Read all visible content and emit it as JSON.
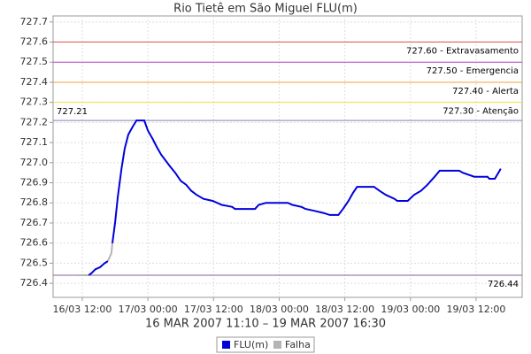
{
  "chart_data": {
    "type": "line",
    "title": "Rio Tietê em São Miguel FLU(m)",
    "subtitle": "16 MAR 2007 11:10 – 19 MAR 2007 16:30",
    "x": [
      "2007-03-16T11:10",
      "2007-03-16T13:10",
      "2007-03-16T13:40",
      "2007-03-16T14:25",
      "2007-03-16T15:15",
      "2007-03-16T16:05",
      "2007-03-16T16:40",
      "2007-03-16T17:20",
      "2007-03-16T17:30",
      "2007-03-16T18:00",
      "2007-03-16T18:30",
      "2007-03-16T19:10",
      "2007-03-16T19:45",
      "2007-03-16T20:25",
      "2007-03-16T21:15",
      "2007-03-16T21:55",
      "2007-03-16T23:20",
      "2007-03-17T00:00",
      "2007-03-17T00:50",
      "2007-03-17T01:35",
      "2007-03-17T02:25",
      "2007-03-17T03:15",
      "2007-03-17T04:05",
      "2007-03-17T05:00",
      "2007-03-17T06:00",
      "2007-03-17T07:00",
      "2007-03-17T07:55",
      "2007-03-17T08:55",
      "2007-03-17T10:10",
      "2007-03-17T11:50",
      "2007-03-17T13:30",
      "2007-03-17T15:25",
      "2007-03-17T15:55",
      "2007-03-17T19:35",
      "2007-03-17T20:15",
      "2007-03-17T21:35",
      "2007-03-18T01:35",
      "2007-03-18T02:25",
      "2007-03-18T04:05",
      "2007-03-18T04:50",
      "2007-03-18T06:30",
      "2007-03-18T08:05",
      "2007-03-18T09:15",
      "2007-03-18T10:50",
      "2007-03-18T11:40",
      "2007-03-18T12:40",
      "2007-03-18T13:30",
      "2007-03-18T14:15",
      "2007-03-18T17:20",
      "2007-03-18T18:20",
      "2007-03-18T19:30",
      "2007-03-18T21:05",
      "2007-03-18T21:35",
      "2007-03-18T23:30",
      "2007-03-19T00:40",
      "2007-03-19T01:55",
      "2007-03-19T03:05",
      "2007-03-19T04:25",
      "2007-03-19T05:20",
      "2007-03-19T08:55",
      "2007-03-19T09:35",
      "2007-03-19T11:40",
      "2007-03-19T14:05",
      "2007-03-19T14:25",
      "2007-03-19T15:25",
      "2007-03-19T16:05",
      "2007-03-19T16:30"
    ],
    "series": [
      {
        "name": "FLU(m)",
        "color": "#0000dd",
        "values": [
          null,
          726.44,
          726.45,
          726.47,
          726.48,
          726.5,
          726.51,
          null,
          726.6,
          726.7,
          726.83,
          726.97,
          727.07,
          727.14,
          727.18,
          727.21,
          727.21,
          727.16,
          727.12,
          727.08,
          727.04,
          727.01,
          726.98,
          726.95,
          726.91,
          726.89,
          726.86,
          726.84,
          726.82,
          726.81,
          726.79,
          726.78,
          726.77,
          726.77,
          726.79,
          726.8,
          726.8,
          726.79,
          726.78,
          726.77,
          726.76,
          726.75,
          726.74,
          726.74,
          726.77,
          726.81,
          726.85,
          726.88,
          726.88,
          726.86,
          726.84,
          726.82,
          726.81,
          726.81,
          726.84,
          726.86,
          726.89,
          726.93,
          726.96,
          726.96,
          726.95,
          726.93,
          726.93,
          726.92,
          726.92,
          726.95,
          726.97
        ]
      },
      {
        "name": "Falha",
        "color": "#b4b4b4",
        "values": [
          726.44,
          726.44,
          null,
          null,
          null,
          null,
          726.51,
          726.55,
          726.6,
          null,
          null,
          null,
          null,
          null,
          null,
          null,
          null,
          null,
          null,
          null,
          null,
          null,
          null,
          null,
          null,
          null,
          null,
          null,
          null,
          null,
          null,
          null,
          null,
          null,
          null,
          null,
          null,
          null,
          null,
          null,
          null,
          null,
          null,
          null,
          null,
          null,
          null,
          null,
          null,
          null,
          null,
          null,
          null,
          null,
          null,
          null,
          null,
          null,
          null,
          null,
          null,
          null,
          null,
          null,
          null,
          null,
          null
        ]
      }
    ],
    "thresholds": [
      {
        "value": 727.6,
        "label": "727.60 - Extravasamento",
        "color": "#e05050",
        "align": "right"
      },
      {
        "value": 727.5,
        "label": "727.50 - Emergencia",
        "color": "#b040c0",
        "align": "right"
      },
      {
        "value": 727.4,
        "label": "727.40 - Alerta",
        "color": "#f0a040",
        "align": "right"
      },
      {
        "value": 727.3,
        "label": "727.30 - Atenção",
        "color": "#f0e040",
        "align": "right"
      },
      {
        "value": 727.21,
        "label": "727.21",
        "color": "#8080c0",
        "align": "left"
      },
      {
        "value": 726.44,
        "label": "726.44",
        "color": "#8060a0",
        "align": "right"
      }
    ],
    "xlim": [
      "2007-03-16T06:40",
      "2007-03-19T20:25"
    ],
    "xticks": [
      {
        "value": "2007-03-16T12:00",
        "label": "16/03 12:00"
      },
      {
        "value": "2007-03-17T00:00",
        "label": "17/03 00:00"
      },
      {
        "value": "2007-03-17T12:00",
        "label": "17/03 12:00"
      },
      {
        "value": "2007-03-18T00:00",
        "label": "18/03 00:00"
      },
      {
        "value": "2007-03-18T12:00",
        "label": "18/03 12:00"
      },
      {
        "value": "2007-03-19T00:00",
        "label": "19/03 00:00"
      },
      {
        "value": "2007-03-19T12:00",
        "label": "19/03 12:00"
      }
    ],
    "ylim": [
      726.33,
      727.73
    ],
    "yticks": [
      726.4,
      726.5,
      726.6,
      726.7,
      726.8,
      726.9,
      {
        "value": 727,
        "label": "727.0"
      },
      727.1,
      727.2,
      727.3,
      727.4,
      727.5,
      727.6,
      727.7
    ],
    "grid": true
  }
}
